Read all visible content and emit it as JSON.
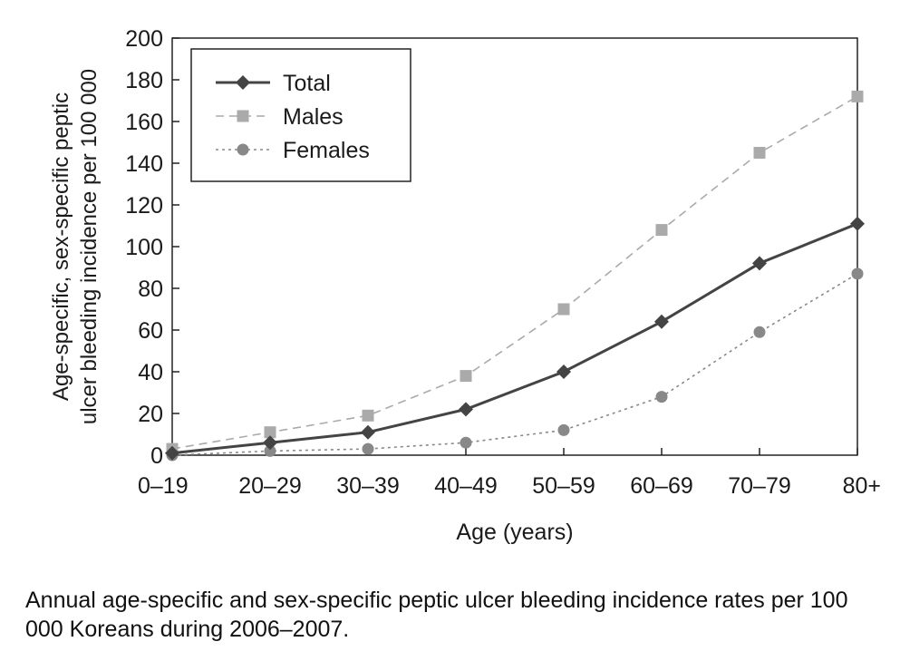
{
  "chart_data": {
    "type": "line",
    "xlabel": "Age (years)",
    "ylabel_lines": [
      "Age-specific, sex-specific peptic",
      "ulcer bleeding incidence per 100 000"
    ],
    "categories": [
      "0–19",
      "20–29",
      "30–39",
      "40–49",
      "50–59",
      "60–69",
      "70–79",
      "80+"
    ],
    "y_ticks": [
      "0",
      "20",
      "40",
      "60",
      "80",
      "100",
      "120",
      "140",
      "160",
      "180",
      "200"
    ],
    "ylim": [
      0,
      200
    ],
    "legend_position": "top-left",
    "grid": false,
    "series": [
      {
        "name": "Total",
        "color": "#444444",
        "line": "solid",
        "marker": "diamond",
        "values": [
          1,
          6,
          11,
          22,
          40,
          64,
          92,
          111
        ]
      },
      {
        "name": "Males",
        "color": "#aaaaaa",
        "line": "dashed",
        "marker": "square",
        "values": [
          3,
          11,
          19,
          38,
          70,
          108,
          145,
          172
        ]
      },
      {
        "name": "Females",
        "color": "#888888",
        "line": "dotted",
        "marker": "circle",
        "values": [
          0,
          2,
          3,
          6,
          12,
          28,
          59,
          87
        ]
      }
    ]
  },
  "caption": "Annual age-specific and sex-specific peptic ulcer bleeding incidence rates per 100 000 Koreans during 2006–2007."
}
